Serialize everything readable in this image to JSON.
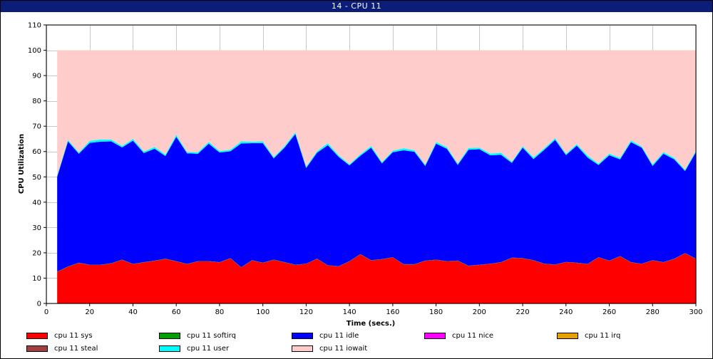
{
  "window": {
    "title": "14 - CPU 11"
  },
  "colors": {
    "sys": "#ff0000",
    "softirq": "#00a000",
    "idle": "#0000ff",
    "nice": "#ff00ff",
    "irq": "#e8a000",
    "steal": "#a04040",
    "user": "#00ffff",
    "iowait": "#ffcccc"
  },
  "chart_data": {
    "type": "area",
    "stacked": true,
    "title": "",
    "xlabel": "Time (secs.)",
    "ylabel": "CPU Utilization",
    "xlim": [
      0,
      300
    ],
    "ylim": [
      0,
      110
    ],
    "xticks": [
      0,
      20,
      40,
      60,
      80,
      100,
      120,
      140,
      160,
      180,
      200,
      220,
      240,
      260,
      280,
      300
    ],
    "yticks": [
      0,
      10,
      20,
      30,
      40,
      50,
      60,
      70,
      80,
      90,
      100,
      110
    ],
    "grid": true,
    "legend_position": "bottom",
    "x": [
      5,
      10,
      15,
      20,
      25,
      30,
      35,
      40,
      45,
      50,
      55,
      60,
      65,
      70,
      75,
      80,
      85,
      90,
      95,
      100,
      105,
      110,
      115,
      120,
      125,
      130,
      135,
      140,
      145,
      150,
      155,
      160,
      165,
      170,
      175,
      180,
      185,
      190,
      195,
      200,
      205,
      210,
      215,
      220,
      225,
      230,
      235,
      240,
      245,
      250,
      255,
      260,
      265,
      270,
      275,
      280,
      285,
      290,
      295,
      300
    ],
    "series": [
      {
        "name": "cpu 11 sys",
        "color_key": "sys",
        "values": [
          12.5,
          14.5,
          16.0,
          15.2,
          15.2,
          15.8,
          17.2,
          15.5,
          16.2,
          16.8,
          17.6,
          16.6,
          15.5,
          16.6,
          16.6,
          16.2,
          17.8,
          14.2,
          17.0,
          16.0,
          17.2,
          16.2,
          15.2,
          15.6,
          17.6,
          15.0,
          14.6,
          16.6,
          19.4,
          17.0,
          17.4,
          18.2,
          15.4,
          15.4,
          16.8,
          17.2,
          16.6,
          16.8,
          14.8,
          15.2,
          15.6,
          16.2,
          18.0,
          17.8,
          17.0,
          15.6,
          15.3,
          16.3,
          16.0,
          15.5,
          18.2,
          16.8,
          18.6,
          16.2,
          15.6,
          17.0,
          16.2,
          17.6,
          19.8,
          17.6
        ]
      },
      {
        "name": "cpu 11 softirq",
        "color_key": "softirq",
        "values": [
          0.1,
          0.1,
          0.1,
          0.1,
          0.1,
          0.1,
          0.1,
          0.1,
          0.1,
          0.1,
          0.1,
          0.1,
          0.1,
          0.1,
          0.1,
          0.1,
          0.1,
          0.1,
          0.1,
          0.1,
          0.1,
          0.1,
          0.1,
          0.1,
          0.1,
          0.1,
          0.1,
          0.1,
          0.1,
          0.1,
          0.1,
          0.1,
          0.1,
          0.1,
          0.1,
          0.1,
          0.1,
          0.1,
          0.1,
          0.1,
          0.1,
          0.1,
          0.1,
          0.1,
          0.1,
          0.1,
          0.1,
          0.1,
          0.1,
          0.1,
          0.1,
          0.1,
          0.1,
          0.1,
          0.1,
          0.1,
          0.1,
          0.1,
          0.1,
          0.1
        ]
      },
      {
        "name": "cpu 11 idle",
        "color_key": "idle",
        "values": [
          37.4,
          49.4,
          43.0,
          48.1,
          48.6,
          48.1,
          44.3,
          48.7,
          43.1,
          44.2,
          40.5,
          49.1,
          43.7,
          42.4,
          46.4,
          43.3,
          42.2,
          48.9,
          46.2,
          47.2,
          40.0,
          45.2,
          51.6,
          37.8,
          41.8,
          47.4,
          43.2,
          37.8,
          38.8,
          44.4,
          37.8,
          41.4,
          45.0,
          44.4,
          37.4,
          45.8,
          44.4,
          37.8,
          45.8,
          45.6,
          42.8,
          42.4,
          37.4,
          43.6,
          39.9,
          45.0,
          49.2,
          42.2,
          46.2,
          42.0,
          36.4,
          41.6,
          38.2,
          47.4,
          45.8,
          37.2,
          42.8,
          39.2,
          32.4,
          42.0
        ]
      },
      {
        "name": "cpu 11 nice",
        "color_key": "nice",
        "values": [
          0,
          0,
          0,
          0,
          0,
          0,
          0,
          0,
          0,
          0,
          0,
          0,
          0,
          0,
          0,
          0,
          0,
          0,
          0,
          0,
          0,
          0,
          0,
          0,
          0,
          0,
          0,
          0,
          0,
          0,
          0,
          0,
          0,
          0,
          0,
          0,
          0,
          0,
          0,
          0,
          0,
          0,
          0,
          0,
          0,
          0,
          0,
          0,
          0,
          0,
          0,
          0,
          0,
          0,
          0,
          0,
          0,
          0,
          0,
          0
        ]
      },
      {
        "name": "cpu 11 irq",
        "color_key": "irq",
        "values": [
          0,
          0,
          0,
          0,
          0,
          0,
          0,
          0,
          0,
          0,
          0,
          0,
          0,
          0,
          0,
          0,
          0,
          0,
          0,
          0,
          0,
          0,
          0,
          0,
          0,
          0,
          0,
          0,
          0,
          0,
          0,
          0,
          0,
          0,
          0,
          0,
          0,
          0,
          0,
          0,
          0,
          0,
          0,
          0,
          0,
          0,
          0,
          0,
          0,
          0,
          0,
          0,
          0,
          0,
          0,
          0,
          0,
          0,
          0,
          0
        ]
      },
      {
        "name": "cpu 11 steal",
        "color_key": "steal",
        "values": [
          0,
          0,
          0,
          0,
          0,
          0,
          0,
          0,
          0,
          0,
          0,
          0,
          0,
          0,
          0,
          0,
          0,
          0,
          0,
          0,
          0,
          0,
          0,
          0,
          0,
          0,
          0,
          0,
          0,
          0,
          0,
          0,
          0,
          0,
          0,
          0,
          0,
          0,
          0,
          0,
          0,
          0,
          0,
          0,
          0,
          0,
          0,
          0,
          0,
          0,
          0,
          0,
          0,
          0,
          0,
          0,
          0,
          0,
          0,
          0
        ]
      },
      {
        "name": "cpu 11 user",
        "color_key": "user",
        "values": [
          0.5,
          0.6,
          0.5,
          0.8,
          0.9,
          0.7,
          0.6,
          0.7,
          0.6,
          0.7,
          0.6,
          0.8,
          0.5,
          0.6,
          0.7,
          0.6,
          0.6,
          0.8,
          0.6,
          0.7,
          0.5,
          0.6,
          0.7,
          0.5,
          0.6,
          0.8,
          0.6,
          0.5,
          0.6,
          0.7,
          0.5,
          0.6,
          0.8,
          0.6,
          0.5,
          0.7,
          0.6,
          0.5,
          0.7,
          0.6,
          0.7,
          0.8,
          0.5,
          0.6,
          0.7,
          0.6,
          0.7,
          0.5,
          0.6,
          0.8,
          0.5,
          0.7,
          0.6,
          0.7,
          0.5,
          0.6,
          0.7,
          0.6,
          0.5,
          0.6
        ]
      },
      {
        "name": "cpu 11 iowait",
        "color_key": "iowait",
        "values": [
          49.5,
          35.4,
          40.4,
          35.8,
          35.2,
          35.3,
          37.8,
          35.0,
          40.0,
          38.2,
          41.2,
          33.4,
          40.2,
          40.3,
          36.2,
          39.8,
          39.3,
          36.0,
          36.1,
          36.0,
          42.2,
          37.9,
          32.4,
          46.0,
          39.9,
          36.7,
          41.5,
          45.0,
          41.1,
          37.8,
          44.2,
          39.7,
          38.7,
          39.5,
          45.2,
          36.2,
          38.3,
          44.8,
          38.6,
          38.5,
          40.8,
          40.5,
          44.0,
          37.9,
          42.3,
          38.7,
          34.7,
          40.9,
          37.1,
          41.6,
          44.8,
          40.8,
          42.5,
          35.6,
          38.0,
          45.1,
          40.2,
          42.5,
          47.2,
          39.7
        ]
      }
    ]
  },
  "legend": {
    "items": [
      {
        "label": "cpu 11 sys",
        "color_key": "sys"
      },
      {
        "label": "cpu 11 softirq",
        "color_key": "softirq"
      },
      {
        "label": "cpu 11 idle",
        "color_key": "idle"
      },
      {
        "label": "cpu 11 nice",
        "color_key": "nice"
      },
      {
        "label": "cpu 11 irq",
        "color_key": "irq"
      },
      {
        "label": "cpu 11 steal",
        "color_key": "steal"
      },
      {
        "label": "cpu 11 user",
        "color_key": "user"
      },
      {
        "label": "cpu 11 iowait",
        "color_key": "iowait"
      }
    ]
  }
}
